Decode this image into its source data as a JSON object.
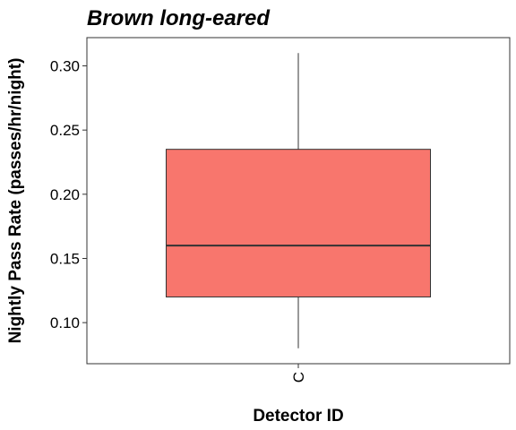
{
  "chart_data": {
    "type": "box",
    "title": "Brown long-eared",
    "xlabel": "Detector ID",
    "ylabel": "Nightly Pass Rate (passes/hr/night)",
    "categories": [
      "C"
    ],
    "ylim": [
      0.068,
      0.322
    ],
    "yticks": [
      0.1,
      0.15,
      0.2,
      0.25,
      0.3
    ],
    "ytick_labels": [
      "0.10",
      "0.15",
      "0.20",
      "0.25",
      "0.30"
    ],
    "boxes": [
      {
        "category": "C",
        "min": 0.08,
        "q1": 0.12,
        "median": 0.16,
        "q3": 0.235,
        "max": 0.31
      }
    ],
    "colors": {
      "box_fill": "#F8766D",
      "box_stroke": "#333333",
      "panel_border": "#333333"
    },
    "grid": false,
    "legend": "none"
  }
}
